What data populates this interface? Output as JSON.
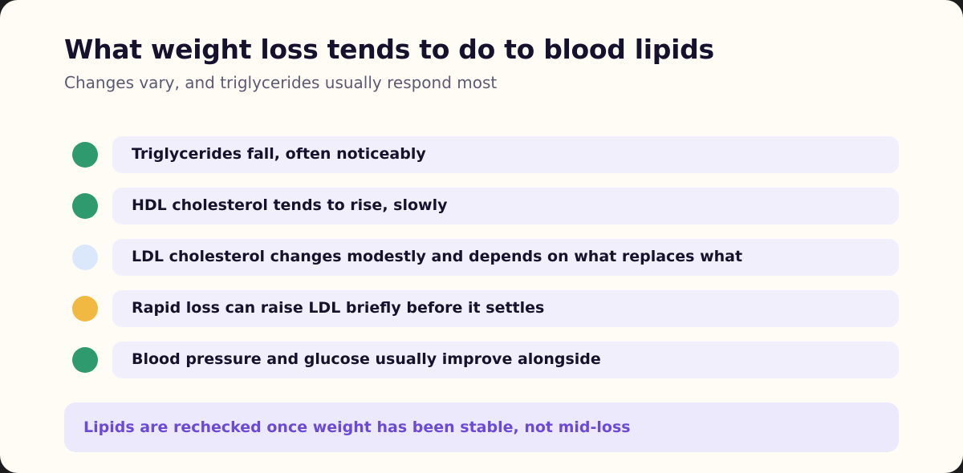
{
  "header": {
    "title": "What weight loss tends to do to blood lipids",
    "subtitle": "Changes vary, and triglycerides usually respond most"
  },
  "items": [
    {
      "text": "Triglycerides fall, often noticeably",
      "status_color": "#2e9a6e",
      "status": "improves"
    },
    {
      "text": "HDL cholesterol tends to rise, slowly",
      "status_color": "#2e9a6e",
      "status": "improves"
    },
    {
      "text": "LDL cholesterol changes modestly and depends on what replaces what",
      "status_color": "#dbe8fc",
      "status": "neutral"
    },
    {
      "text": "Rapid loss can raise LDL briefly before it settles",
      "status_color": "#f2b942",
      "status": "caution"
    },
    {
      "text": "Blood pressure and glucose usually improve alongside",
      "status_color": "#2e9a6e",
      "status": "improves"
    }
  ],
  "footnote": {
    "text": "Lipids are rechecked once weight has been stable, not mid-loss"
  }
}
